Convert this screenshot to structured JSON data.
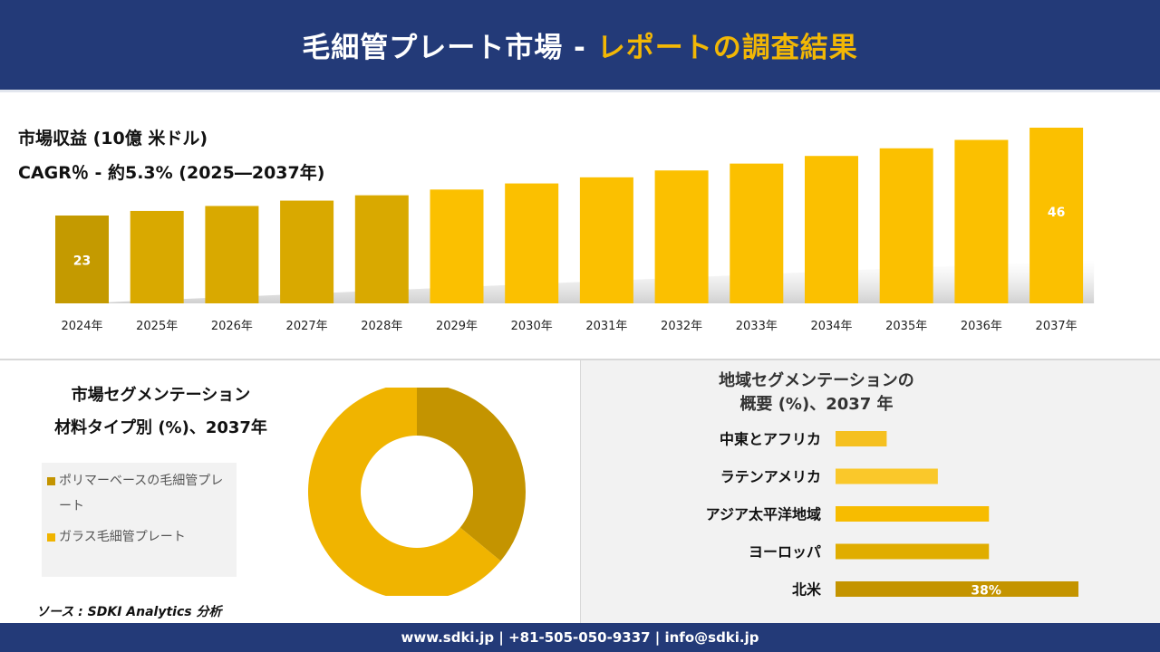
{
  "header": {
    "title_white": "毛細管プレート市場 - ",
    "title_gold": "レポートの調査結果"
  },
  "revenue": {
    "title": "市場収益 (10億 米ドル)",
    "cagr": "CAGR％ - 約5.3% (2025―2037年)"
  },
  "colors": {
    "navy": "#233a78",
    "gold": "#f2b705",
    "bar_dark": "#c49a00",
    "bar_mid": "#d9a900",
    "bar_light": "#fbc000",
    "donut_dark": "#c49400",
    "donut_light": "#f0b400",
    "hbar_mea": "#f5c020",
    "hbar_latam": "#fac82a",
    "hbar_apac": "#f7bc00",
    "hbar_europe": "#e0ad00",
    "hbar_na": "#c49400"
  },
  "chart_data": [
    {
      "type": "bar",
      "categories": [
        "2024年",
        "2025年",
        "2026年",
        "2027年",
        "2028年",
        "2029年",
        "2030年",
        "2031年",
        "2032年",
        "2033年",
        "2034年",
        "2035年",
        "2036年",
        "2037年"
      ],
      "values": [
        23,
        24.2,
        25.5,
        26.9,
        28.3,
        29.8,
        31.4,
        33.0,
        34.8,
        36.6,
        38.6,
        40.6,
        42.8,
        46
      ],
      "data_labels": [
        "23",
        "",
        "",
        "",
        "",
        "",
        "",
        "",
        "",
        "",
        "",
        "",
        "",
        "46"
      ],
      "ylim": [
        0,
        46
      ]
    },
    {
      "type": "pie",
      "title_line1": "市場セグメンテーション",
      "title_line2": "材料タイプ別 (%)、2037年",
      "labels": [
        "ポリマーベースの毛細管プレート",
        "ガラス毛細管プレート"
      ],
      "values": [
        36,
        64
      ],
      "colors": [
        "#c49400",
        "#f0b400"
      ]
    },
    {
      "type": "bar",
      "orientation": "horizontal",
      "title_line1": "地域セグメンテーションの",
      "title_line2": "概要 (%)、2037 年",
      "categories": [
        "中東とアフリカ",
        "ラテンアメリカ",
        "アジア太平洋地域",
        "ヨーロッパ",
        "北米"
      ],
      "values": [
        8,
        16,
        24,
        24,
        38
      ],
      "data_labels": [
        "",
        "",
        "",
        "",
        "38%"
      ],
      "xlim": [
        0,
        38
      ]
    }
  ],
  "source": "ソース : SDKI Analytics 分析",
  "footer": {
    "contact": "www.sdki.jp | +81-505-050-9337 | info@sdki.jp"
  }
}
